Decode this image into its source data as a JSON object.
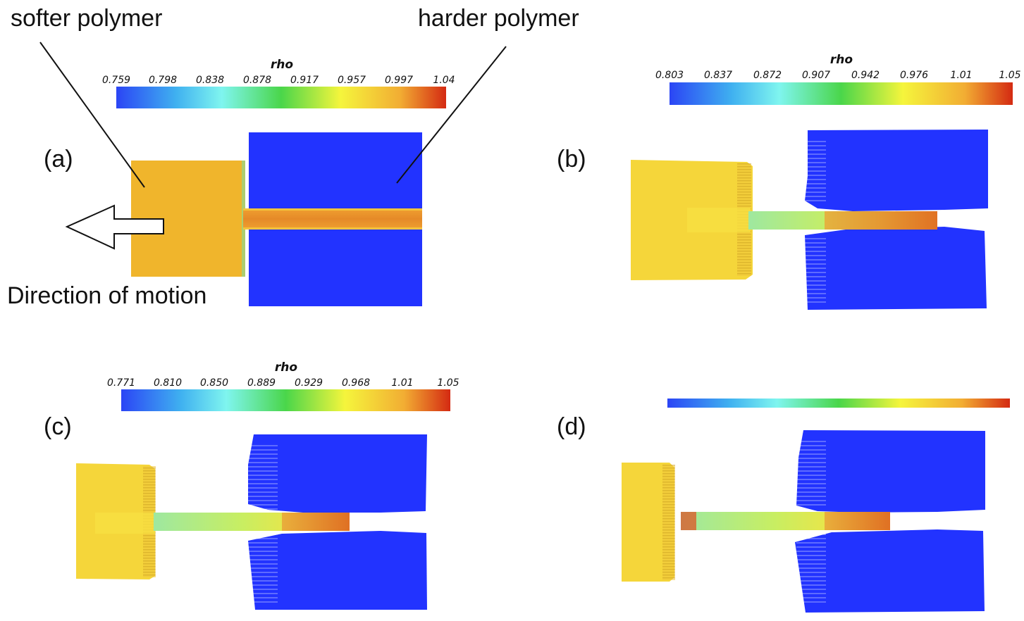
{
  "annotations": {
    "softer": "softer polymer",
    "harder": "harder polymer",
    "direction": "Direction of motion"
  },
  "colors": {
    "colormap": [
      "#2b45f5",
      "#3fb0f0",
      "#7ff5ef",
      "#4ad64a",
      "#f5f53c",
      "#f2ad33",
      "#d42a12"
    ],
    "hard_polymer": "#2233ff",
    "soft_polymer_a": "#f0b52c",
    "soft_polymer_later": "#f5d63a",
    "channel_core": "#e68f2a"
  },
  "panels": [
    {
      "id": "a",
      "label": "(a)",
      "colorbar": {
        "title": "rho",
        "ticks": [
          "0.759",
          "0.798",
          "0.838",
          "0.878",
          "0.917",
          "0.957",
          "0.997",
          "1.04"
        ]
      }
    },
    {
      "id": "b",
      "label": "(b)",
      "colorbar": {
        "title": "rho",
        "ticks": [
          "0.803",
          "0.837",
          "0.872",
          "0.907",
          "0.942",
          "0.976",
          "1.01",
          "1.05"
        ]
      }
    },
    {
      "id": "c",
      "label": "(c)",
      "colorbar": {
        "title": "rho",
        "ticks": [
          "0.771",
          "0.810",
          "0.850",
          "0.889",
          "0.929",
          "0.968",
          "1.01",
          "1.05"
        ]
      }
    },
    {
      "id": "d",
      "label": "(d)",
      "colorbar": {
        "title": "",
        "ticks": []
      }
    }
  ]
}
